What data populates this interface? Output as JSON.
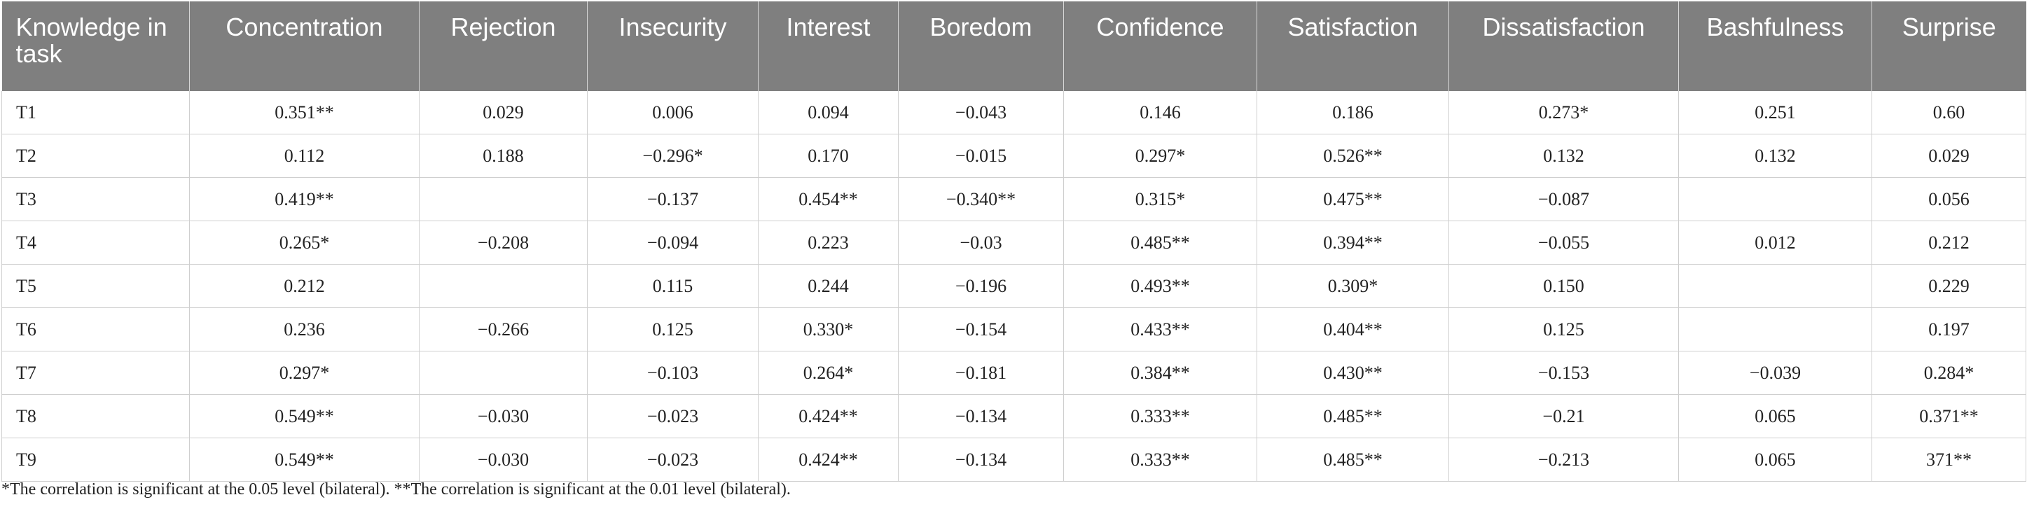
{
  "table": {
    "headers": [
      "Knowledge in task",
      "Concentration",
      "Rejection",
      "Insecurity",
      "Interest",
      "Boredom",
      "Confidence",
      "Satisfaction",
      "Dissatisfaction",
      "Bashfulness",
      "Surprise"
    ],
    "rows": [
      [
        "T1",
        "0.351**",
        "0.029",
        "0.006",
        "0.094",
        "−0.043",
        "0.146",
        "0.186",
        "0.273*",
        "0.251",
        "0.60"
      ],
      [
        "T2",
        "0.112",
        "0.188",
        "−0.296*",
        "0.170",
        "−0.015",
        "0.297*",
        "0.526**",
        "0.132",
        "0.132",
        "0.029"
      ],
      [
        "T3",
        "0.419**",
        "",
        "−0.137",
        "0.454**",
        "−0.340**",
        "0.315*",
        "0.475**",
        "−0.087",
        "",
        "0.056"
      ],
      [
        "T4",
        "0.265*",
        "−0.208",
        "−0.094",
        "0.223",
        "−0.03",
        "0.485**",
        "0.394**",
        "−0.055",
        "0.012",
        "0.212"
      ],
      [
        "T5",
        "0.212",
        "",
        "0.115",
        "0.244",
        "−0.196",
        "0.493**",
        "0.309*",
        "0.150",
        "",
        "0.229"
      ],
      [
        "T6",
        "0.236",
        "−0.266",
        "0.125",
        "0.330*",
        "−0.154",
        "0.433**",
        "0.404**",
        "0.125",
        "",
        "0.197"
      ],
      [
        "T7",
        "0.297*",
        "",
        "−0.103",
        "0.264*",
        "−0.181",
        "0.384**",
        "0.430**",
        "−0.153",
        "−0.039",
        "0.284*"
      ],
      [
        "T8",
        "0.549**",
        "−0.030",
        "−0.023",
        "0.424**",
        "−0.134",
        "0.333**",
        "0.485**",
        "−0.21",
        "0.065",
        "0.371**"
      ],
      [
        "T9",
        "0.549**",
        "−0.030",
        "−0.023",
        "0.424**",
        "−0.134",
        "0.333**",
        "0.485**",
        "−0.213",
        "0.065",
        "371**"
      ]
    ]
  },
  "footnote": "*The correlation is significant at the 0.05 level (bilateral). **The correlation is significant at the 0.01 level (bilateral).",
  "colors": {
    "header_bg": "#7f7f7f",
    "header_text": "#ffffff",
    "grid": "#cfcfcf"
  }
}
